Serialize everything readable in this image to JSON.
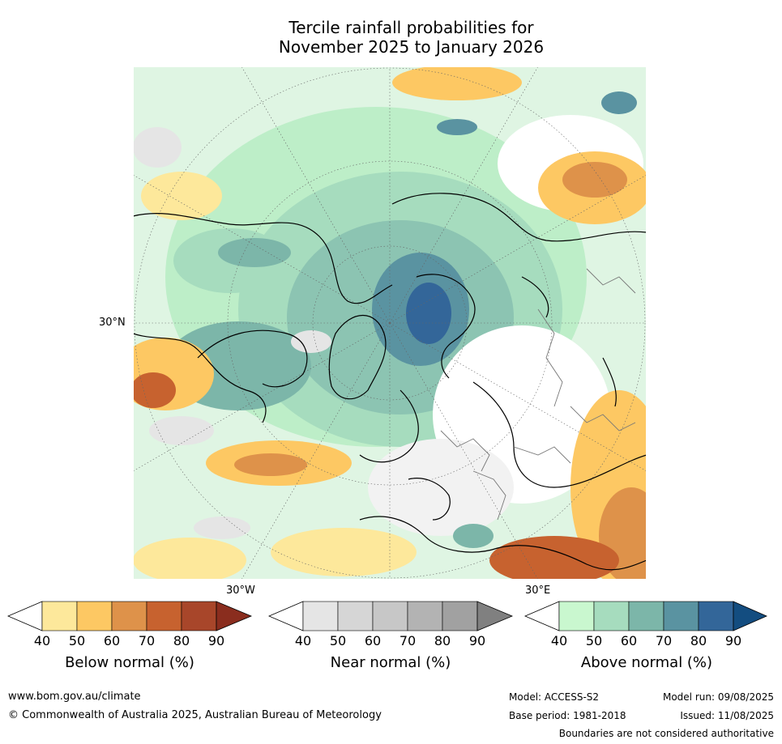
{
  "title": {
    "line1": "Tercile rainfall probabilities for",
    "line2": "November 2025 to January 2026"
  },
  "map": {
    "lat_label": "30°N",
    "lon_labels": {
      "left": "30°W",
      "right": "30°E"
    }
  },
  "colorbars": [
    {
      "name": "Below normal (%)",
      "ticks": [
        "40",
        "50",
        "60",
        "70",
        "80",
        "90"
      ],
      "colors": [
        "#ffffff",
        "#fde89b",
        "#fdc863",
        "#de924a",
        "#c7622f",
        "#a8462a",
        "#8a2d1e"
      ]
    },
    {
      "name": "Near normal (%)",
      "ticks": [
        "40",
        "50",
        "60",
        "70",
        "80",
        "90"
      ],
      "colors": [
        "#ffffff",
        "#e5e5e5",
        "#d6d6d6",
        "#c7c7c7",
        "#b3b3b3",
        "#a1a1a1",
        "#808080"
      ]
    },
    {
      "name": "Above normal (%)",
      "ticks": [
        "40",
        "50",
        "60",
        "70",
        "80",
        "90"
      ],
      "colors": [
        "#ffffff",
        "#c9f7cf",
        "#a6dcbe",
        "#7cb6a9",
        "#5a93a1",
        "#336699",
        "#134d80"
      ]
    }
  ],
  "footer": {
    "url": "www.bom.gov.au/climate",
    "copyright": "© Commonwealth of Australia 2025, Australian Bureau of Meteorology",
    "model": "Model: ACCESS-S2",
    "base_period": "Base period: 1981-2018",
    "model_run": "Model run: 09/08/2025",
    "issued": "Issued: 11/08/2025",
    "disclaimer": "Boundaries are not considered authoritative"
  }
}
